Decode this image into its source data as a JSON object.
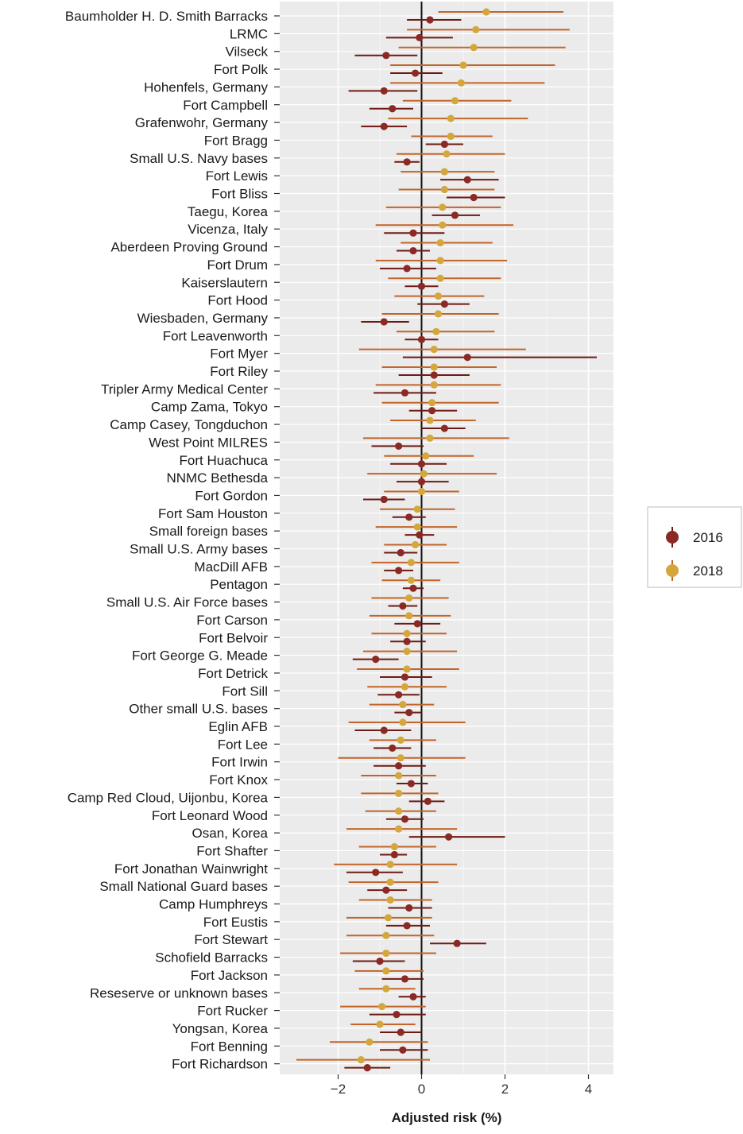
{
  "chart_data": {
    "type": "scatter",
    "subtype": "dot-and-whisker",
    "xlabel": "Adjusted risk (%)",
    "xlim": [
      -3.4,
      4.6
    ],
    "x_ticks": [
      -2,
      0,
      2,
      4
    ],
    "x_tick_labels": [
      "−2",
      "0",
      "2",
      "4"
    ],
    "grid": true,
    "reference_line_x": 0,
    "legend": {
      "position": "right",
      "title": ""
    },
    "categories": [
      "Baumholder H. D. Smith Barracks",
      "LRMC",
      "Vilseck",
      "Fort Polk",
      "Hohenfels, Germany",
      "Fort Campbell",
      "Grafenwohr, Germany",
      "Fort Bragg",
      "Small U.S. Navy bases",
      "Fort Lewis",
      "Fort Bliss",
      "Taegu, Korea",
      "Vicenza, Italy",
      "Aberdeen Proving Ground",
      "Fort Drum",
      "Kaiserslautern",
      "Fort Hood",
      "Wiesbaden, Germany",
      "Fort Leavenworth",
      "Fort Myer",
      "Fort Riley",
      "Tripler Army Medical Center",
      "Camp Zama, Tokyo",
      "Camp Casey, Tongduchon",
      "West Point MILRES",
      "Fort Huachuca",
      "NNMC Bethesda",
      "Fort Gordon",
      "Fort Sam Houston",
      "Small foreign bases",
      "Small U.S. Army bases",
      "MacDill AFB",
      "Pentagon",
      "Small U.S. Air Force bases",
      "Fort Carson",
      "Fort Belvoir",
      "Fort George G. Meade",
      "Fort Detrick",
      "Fort Sill",
      "Other small U.S. bases",
      "Eglin AFB",
      "Fort Lee",
      "Fort Irwin",
      "Fort Knox",
      "Camp Red Cloud, Uijonbu, Korea",
      "Fort Leonard Wood",
      "Osan, Korea",
      "Fort Shafter",
      "Fort Jonathan Wainwright",
      "Small National Guard bases",
      "Camp Humphreys",
      "Fort Eustis",
      "Fort Stewart",
      "Schofield Barracks",
      "Fort Jackson",
      "Reseserve or unknown bases",
      "Fort Rucker",
      "Yongsan, Korea",
      "Fort Benning",
      "Fort Richardson"
    ],
    "series": [
      {
        "name": "2016",
        "color": "#8B2A24",
        "whisker_color": "#6E1A14",
        "estimate": [
          0.2,
          -0.05,
          -0.85,
          -0.15,
          -0.9,
          -0.7,
          -0.9,
          0.55,
          -0.35,
          1.1,
          1.25,
          0.8,
          -0.2,
          -0.2,
          -0.35,
          0.0,
          0.55,
          -0.9,
          0.0,
          1.1,
          0.3,
          -0.4,
          0.25,
          0.55,
          -0.55,
          0.0,
          0.0,
          -0.9,
          -0.3,
          -0.05,
          -0.5,
          -0.55,
          -0.2,
          -0.45,
          -0.1,
          -0.35,
          -1.1,
          -0.4,
          -0.55,
          -0.3,
          -0.9,
          -0.7,
          -0.55,
          -0.25,
          0.15,
          -0.4,
          0.65,
          -0.65,
          -1.1,
          -0.85,
          -0.3,
          -0.35,
          0.85,
          -1.0,
          -0.4,
          -0.2,
          -0.6,
          -0.5,
          -0.45,
          -1.3
        ],
        "lower": [
          -0.35,
          -0.85,
          -1.6,
          -0.75,
          -1.75,
          -1.25,
          -1.45,
          0.1,
          -0.65,
          0.45,
          0.6,
          0.25,
          -0.9,
          -0.6,
          -1.0,
          -0.4,
          -0.1,
          -1.45,
          -0.4,
          -0.45,
          -0.55,
          -1.15,
          -0.3,
          0.0,
          -1.2,
          -0.75,
          -0.6,
          -1.4,
          -0.7,
          -0.4,
          -0.9,
          -0.9,
          -0.45,
          -0.8,
          -0.65,
          -0.75,
          -1.65,
          -1.0,
          -1.05,
          -0.65,
          -1.6,
          -1.15,
          -1.15,
          -0.6,
          -0.3,
          -0.85,
          -0.3,
          -1.0,
          -1.8,
          -1.3,
          -0.8,
          -0.85,
          0.2,
          -1.65,
          -0.95,
          -0.55,
          -1.25,
          -1.0,
          -1.0,
          -1.85
        ],
        "upper": [
          0.95,
          0.75,
          -0.1,
          0.5,
          -0.1,
          -0.2,
          -0.35,
          1.0,
          -0.05,
          1.85,
          2.0,
          1.4,
          0.55,
          0.2,
          0.35,
          0.4,
          1.15,
          -0.3,
          0.4,
          4.2,
          1.15,
          0.35,
          0.85,
          1.05,
          0.05,
          0.6,
          0.65,
          -0.4,
          0.1,
          0.3,
          -0.1,
          -0.2,
          0.05,
          -0.1,
          0.45,
          0.1,
          -0.55,
          0.25,
          -0.05,
          0.0,
          -0.25,
          -0.25,
          0.1,
          0.15,
          0.55,
          0.05,
          2.0,
          -0.35,
          -0.45,
          -0.35,
          0.25,
          0.2,
          1.55,
          -0.4,
          0.05,
          0.1,
          0.1,
          0.0,
          0.15,
          -0.75
        ]
      },
      {
        "name": "2018",
        "color": "#D4A73C",
        "whisker_color": "#C1652B",
        "estimate": [
          1.55,
          1.3,
          1.25,
          1.0,
          0.95,
          0.8,
          0.7,
          0.7,
          0.6,
          0.55,
          0.55,
          0.5,
          0.5,
          0.45,
          0.45,
          0.45,
          0.4,
          0.4,
          0.35,
          0.3,
          0.3,
          0.3,
          0.25,
          0.2,
          0.2,
          0.1,
          0.05,
          0.0,
          -0.1,
          -0.1,
          -0.15,
          -0.25,
          -0.25,
          -0.3,
          -0.3,
          -0.35,
          -0.35,
          -0.35,
          -0.4,
          -0.45,
          -0.45,
          -0.5,
          -0.5,
          -0.55,
          -0.55,
          -0.55,
          -0.55,
          -0.65,
          -0.75,
          -0.75,
          -0.75,
          -0.8,
          -0.85,
          -0.85,
          -0.85,
          -0.85,
          -0.95,
          -1.0,
          -1.25,
          -1.45
        ],
        "lower": [
          0.4,
          -0.35,
          -0.55,
          -0.75,
          -0.75,
          -0.45,
          -0.8,
          -0.25,
          -0.6,
          -0.5,
          -0.55,
          -0.85,
          -1.1,
          -0.5,
          -1.1,
          -0.8,
          -0.65,
          -0.95,
          -0.6,
          -1.5,
          -0.95,
          -1.1,
          -0.95,
          -0.75,
          -1.4,
          -0.9,
          -1.3,
          -0.9,
          -1.0,
          -1.1,
          -0.9,
          -1.2,
          -0.95,
          -1.2,
          -1.25,
          -1.2,
          -1.4,
          -1.55,
          -1.3,
          -1.25,
          -1.75,
          -1.25,
          -2.0,
          -1.45,
          -1.45,
          -1.35,
          -1.8,
          -1.5,
          -2.1,
          -1.75,
          -1.5,
          -1.8,
          -1.8,
          -1.95,
          -1.6,
          -1.5,
          -1.95,
          -1.7,
          -2.2,
          -3.0
        ],
        "upper": [
          3.4,
          3.55,
          3.45,
          3.2,
          2.95,
          2.15,
          2.55,
          1.7,
          2.0,
          1.75,
          1.75,
          1.9,
          2.2,
          1.7,
          2.05,
          1.9,
          1.5,
          1.85,
          1.75,
          2.5,
          1.8,
          1.9,
          1.85,
          1.3,
          2.1,
          1.25,
          1.8,
          0.9,
          0.8,
          0.85,
          0.6,
          0.9,
          0.45,
          0.65,
          0.7,
          0.6,
          0.85,
          0.9,
          0.6,
          0.3,
          1.05,
          0.35,
          1.05,
          0.35,
          0.4,
          0.35,
          0.85,
          0.35,
          0.85,
          0.4,
          0.25,
          0.25,
          0.3,
          0.35,
          0.05,
          -0.15,
          0.1,
          -0.15,
          0.15,
          0.2
        ]
      }
    ]
  }
}
